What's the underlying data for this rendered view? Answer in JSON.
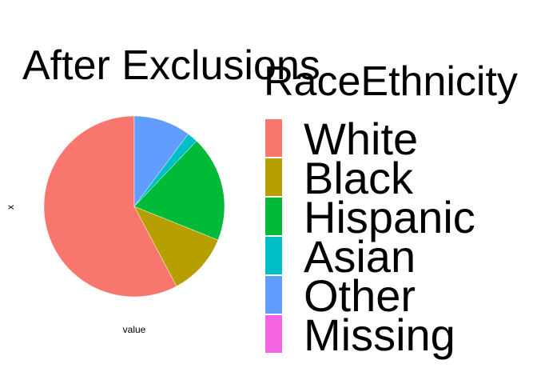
{
  "chart_data": {
    "type": "pie",
    "title": "After Exclusions",
    "xlabel": "value",
    "ylabel": "x",
    "legend_title": "RaceEthnicity",
    "legend_position": "right",
    "start_angle_deg": 0,
    "direction": "counterclockwise",
    "slices": [
      {
        "label": "White",
        "value": 59.5,
        "color": "#F8766D"
      },
      {
        "label": "Black",
        "value": 11.5,
        "color": "#B79F00"
      },
      {
        "label": "Hispanic",
        "value": 19.5,
        "color": "#00BA38"
      },
      {
        "label": "Asian",
        "value": 2.0,
        "color": "#00BFC4"
      },
      {
        "label": "Other",
        "value": 10.5,
        "color": "#619CFF"
      },
      {
        "label": "Missing",
        "value": 0.0,
        "color": "#F564E3"
      }
    ]
  }
}
